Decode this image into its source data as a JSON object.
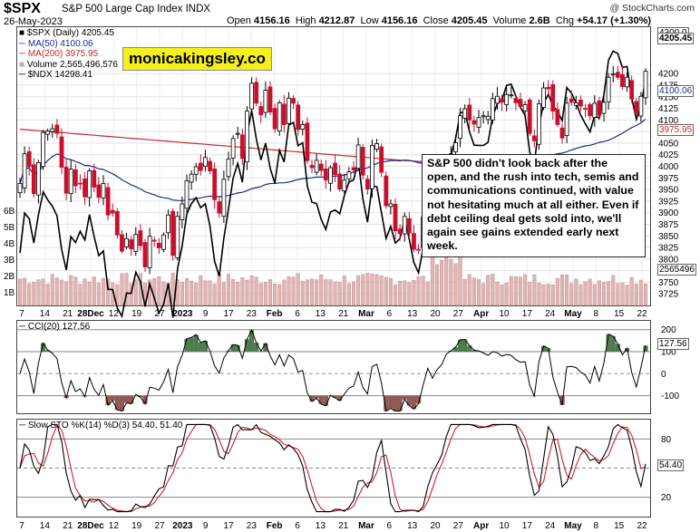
{
  "header": {
    "symbol": "$SPX",
    "name": "S&P 500 Large Cap Index  INDX",
    "date": "26-May-2023",
    "open_label": "Open",
    "open": "4156.16",
    "high_label": "High",
    "high": "4212.87",
    "low_label": "Low",
    "low": "4156.16",
    "close_label": "Close",
    "close": "4205.45",
    "volume_label": "Volume",
    "volume": "2.6B",
    "chg_label": "Chg",
    "chg": "+54.17 (+1.30%)",
    "credit": "@ StockCharts.com"
  },
  "watermark": "monicakingsley.co",
  "note": "S&P 500 didn't look back after the open, and the rush into tech, semis and communications continued, with value not hesitating much at all either. Even if debt ceiling deal gets sold into, we'll again see gains extended early next week.",
  "legend": {
    "spx": "$SPX (Daily) 4205.45",
    "ma50": "MA(50) 4100.06",
    "ma200": "MA(200) 3975.95",
    "volume": "Volume 2,565,496,576",
    "ndx": "$NDX 14298.41"
  },
  "colors": {
    "up": "#ffffff",
    "down": "#c8102e",
    "ma50": "#1f2a90",
    "ma200": "#c42a2a",
    "ndx": "#000000",
    "vol": "#e2b4b4",
    "cci_pos": "#4e7a4e",
    "cci_neg": "#8e5a56",
    "sto_k": "#000000",
    "sto_d": "#d42020"
  },
  "tags": {
    "top": "4300.0",
    "close": "4205.45",
    "ma50": "4100.06",
    "ma200": "3975.95",
    "vol": "2565496",
    "cci": "127.56",
    "sto": "54.40"
  },
  "cci_label": "CCI(20) 127.56",
  "sto_label": "Slow STO %K(14) %D(3) 54.40, 51.40",
  "x_labels": [
    "7",
    "14",
    "21",
    "28Dec",
    "12",
    "19",
    "27",
    "2023",
    "9",
    "17",
    "23",
    "Feb",
    "6",
    "13",
    "21",
    "Mar",
    "6",
    "13",
    "20",
    "27",
    "Apr",
    "10",
    "17",
    "24",
    "May",
    "8",
    "15",
    "22"
  ],
  "chart_data": [
    {
      "type": "line",
      "title": "$SPX S&P 500 Large Cap Index INDX",
      "subtitle": "26-May-2023",
      "y_right": {
        "ticks": [
          3725,
          3750,
          3775,
          3800,
          3825,
          3850,
          3875,
          3900,
          3925,
          3950,
          3975,
          4000,
          4025,
          4050,
          4075,
          4100,
          4125,
          4150,
          4175,
          4200
        ],
        "range": [
          3700,
          4300
        ]
      },
      "volume_ticks": [
        "1B",
        "2B",
        "3B",
        "4B",
        "5B",
        "6B"
      ],
      "series": [
        {
          "name": "$SPX (Daily)",
          "type": "candlestick",
          "last": 4205.45,
          "close": [
            3963,
            4027,
            3999,
            3941,
            4008,
            4073,
            4076,
            4081,
            4071,
            3998,
            3942,
            3994,
            3958,
            3963,
            3934,
            3990,
            3955,
            3933,
            3963,
            3895,
            3899,
            3852,
            3817,
            3844,
            3822,
            3853,
            3829,
            3783,
            3849,
            3839,
            3824,
            3852,
            3895,
            3808,
            3892,
            3919,
            3969,
            3983,
            3999,
            3991,
            4019,
            3990,
            3928,
            3899,
            3972,
            4016,
            4060,
            4071,
            4017,
            4119,
            4179,
            4136,
            4111,
            4164,
            4117,
            4081,
            4137,
            4090,
            4147,
            4136,
            4079,
            4090,
            4012,
            3997,
            4013,
            3991,
            3970,
            3997,
            3982,
            3951,
            3970,
            3988,
            3992,
            4046,
            3981,
            3951,
            4045,
            4049,
            3987,
            3915,
            3919,
            3861,
            3855,
            3892,
            3856,
            3821,
            3819,
            3891,
            3960,
            3917,
            3951,
            3970,
            4015,
            4027,
            4051,
            4109,
            4124,
            4100,
            4091,
            4105,
            4109,
            4108,
            4146,
            4151,
            4138,
            4155,
            4154,
            4137,
            4129,
            4133,
            4071,
            4055,
            4135,
            4169,
            4167,
            4119,
            4090,
            4061,
            4136,
            4138,
            4137,
            4130,
            4124,
            4109,
            4136,
            4110,
            4138,
            4192,
            4199,
            4192,
            4172,
            4192,
            4145,
            4115,
            4151,
            4205
          ]
        },
        {
          "name": "MA(50)",
          "last": 4100.06
        },
        {
          "name": "MA(200)",
          "last": 3975.95
        },
        {
          "name": "$NDX",
          "last": 14298.41
        }
      ]
    },
    {
      "type": "line",
      "title": "CCI(20) 127.56",
      "y_right": {
        "ticks": [
          -100,
          0,
          100,
          200
        ],
        "range": [
          -180,
          240
        ]
      },
      "series": [
        {
          "name": "CCI(20)",
          "last": 127.56
        }
      ]
    },
    {
      "type": "line",
      "title": "Slow STO %K(14) %D(3) 54.40, 51.40",
      "y_right": {
        "ticks": [
          20,
          50,
          80
        ],
        "range": [
          0,
          100
        ]
      },
      "series": [
        {
          "name": "%K(14)",
          "last": 54.4
        },
        {
          "name": "%D(3)",
          "last": 51.4
        }
      ]
    }
  ]
}
